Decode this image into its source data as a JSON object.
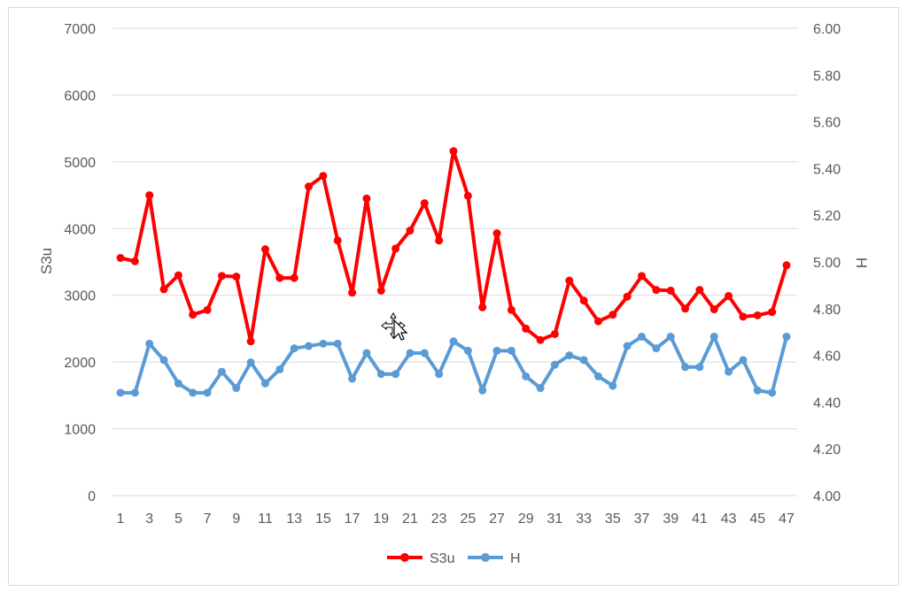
{
  "chart_data": {
    "type": "line",
    "x": [
      1,
      2,
      3,
      4,
      5,
      6,
      7,
      8,
      9,
      10,
      11,
      12,
      13,
      14,
      15,
      16,
      17,
      18,
      19,
      20,
      21,
      22,
      23,
      24,
      25,
      26,
      27,
      28,
      29,
      30,
      31,
      32,
      33,
      34,
      35,
      36,
      37,
      38,
      39,
      40,
      41,
      42,
      43,
      44,
      45,
      46,
      47
    ],
    "x_tick_labels": [
      "1",
      "3",
      "5",
      "7",
      "9",
      "11",
      "13",
      "15",
      "17",
      "19",
      "21",
      "23",
      "25",
      "27",
      "29",
      "31",
      "33",
      "35",
      "37",
      "39",
      "41",
      "43",
      "45",
      "47"
    ],
    "y_left": {
      "label": "S3u",
      "min": 0,
      "max": 7000,
      "step": 1000,
      "tick_labels": [
        "0",
        "1000",
        "2000",
        "3000",
        "4000",
        "5000",
        "6000",
        "7000"
      ]
    },
    "y_right": {
      "label": "H",
      "min": 4.0,
      "max": 6.0,
      "step": 0.2,
      "tick_labels": [
        "4.00",
        "4.20",
        "4.40",
        "4.60",
        "4.80",
        "5.00",
        "5.20",
        "5.40",
        "5.60",
        "5.80",
        "6.00"
      ]
    },
    "grid": true,
    "legend_position": "bottom",
    "series": [
      {
        "name": "S3u",
        "axis": "left",
        "color": "#ff0000",
        "values": [
          3560,
          3510,
          4500,
          3090,
          3300,
          2710,
          2780,
          3290,
          3280,
          2310,
          3690,
          3260,
          3260,
          4630,
          4790,
          3820,
          3040,
          4450,
          3070,
          3700,
          3970,
          4380,
          3820,
          5160,
          4490,
          2820,
          3930,
          2780,
          2500,
          2330,
          2420,
          3220,
          2920,
          2610,
          2710,
          2980,
          3290,
          3080,
          3070,
          2800,
          3080,
          2790,
          2990,
          2680,
          2700,
          2750,
          3450
        ]
      },
      {
        "name": "H",
        "axis": "right",
        "color": "#5b9bd5",
        "values": [
          4.44,
          4.44,
          4.65,
          4.58,
          4.48,
          4.44,
          4.44,
          4.53,
          4.46,
          4.57,
          4.48,
          4.54,
          4.63,
          4.64,
          4.65,
          4.65,
          4.5,
          4.61,
          4.52,
          4.52,
          4.61,
          4.61,
          4.52,
          4.66,
          4.62,
          4.45,
          4.62,
          4.62,
          4.51,
          4.46,
          4.56,
          4.6,
          4.58,
          4.51,
          4.47,
          4.64,
          4.68,
          4.63,
          4.68,
          4.55,
          4.55,
          4.68,
          4.53,
          4.58,
          4.45,
          4.44,
          4.68
        ]
      }
    ]
  },
  "cursor": {
    "icon": "move-cursor-icon"
  }
}
